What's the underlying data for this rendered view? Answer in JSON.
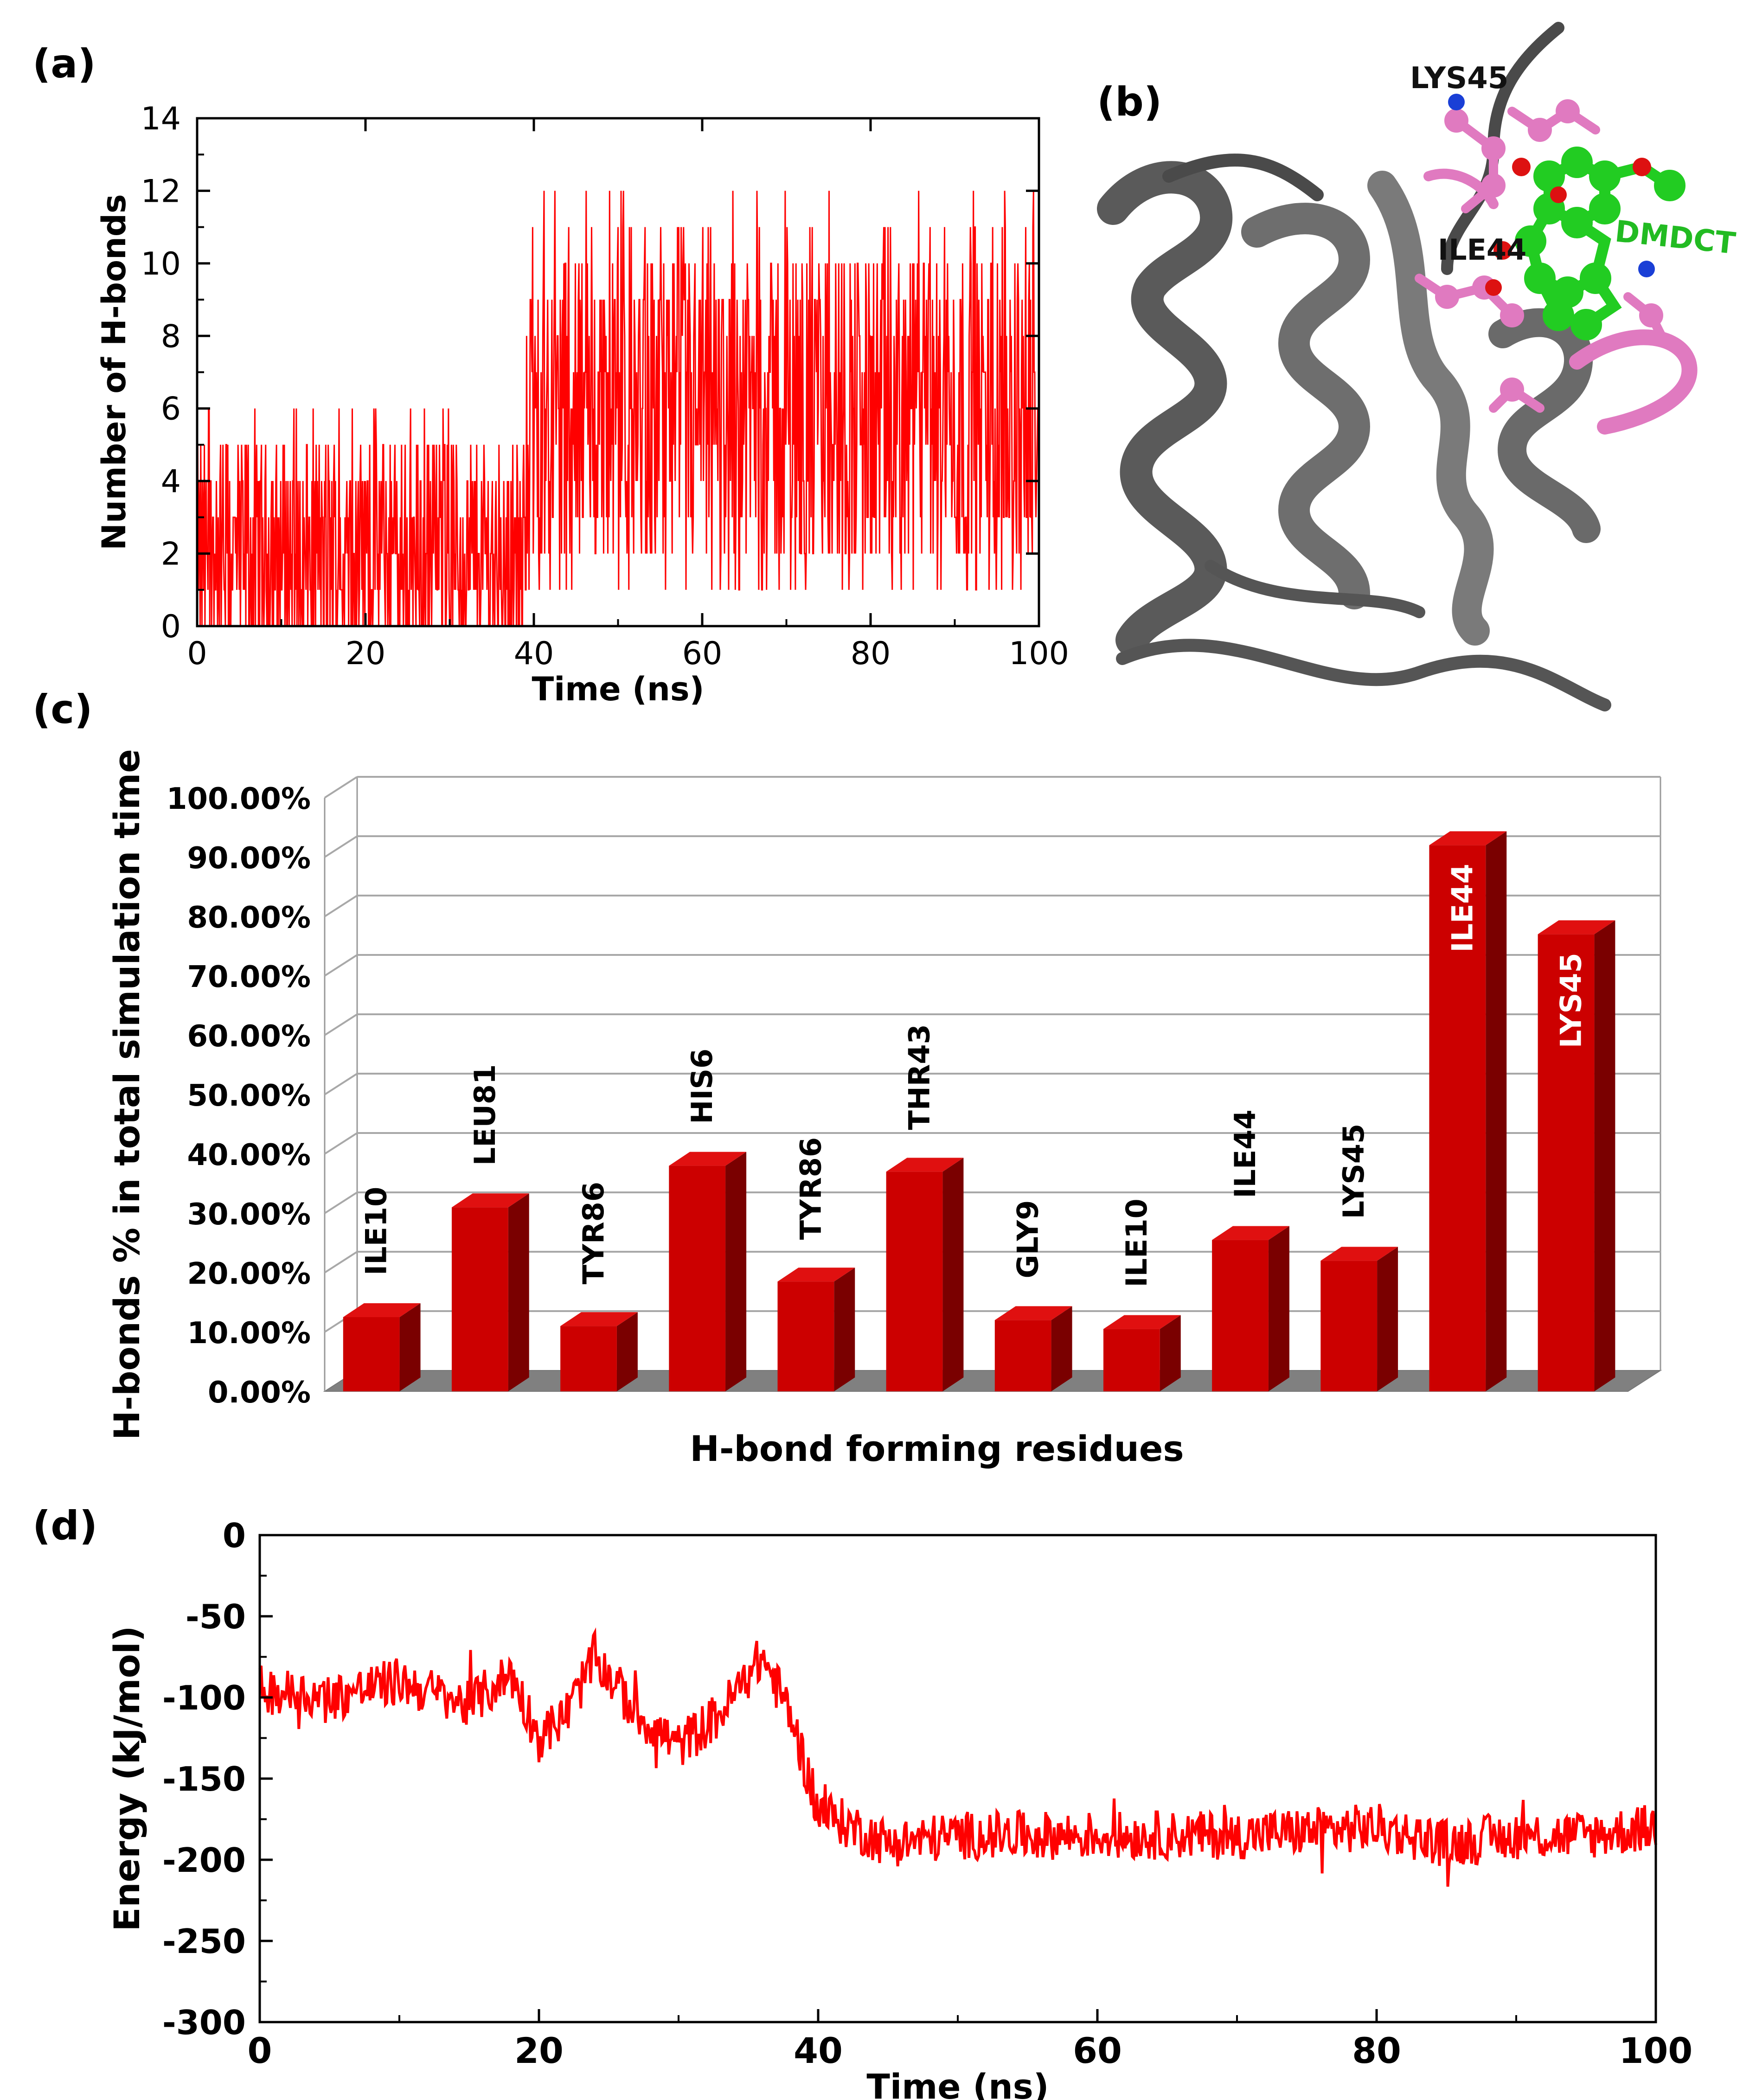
{
  "figure": {
    "panels": {
      "a": "(a)",
      "b": "(b)",
      "c": "(c)",
      "d": "(d)"
    }
  },
  "colors": {
    "line_red": "#ff0000",
    "bar_red": "#cc0000",
    "bar_side": "#8b0000",
    "ribbon": "#6e6e6e",
    "residue_pink": "#e07ac0",
    "ligand_green": "#22cc22",
    "nitrogen_blue": "#1a3fd6",
    "oxygen_red": "#dd1111"
  },
  "structure": {
    "labels": {
      "lys45": "LYS45",
      "ile44": "ILE44",
      "ligand": "DMDCT"
    }
  },
  "chart_data": [
    {
      "id": "a",
      "type": "line",
      "xlabel": "Time (ns)",
      "ylabel": "Number of H-bonds",
      "xlim": [
        0,
        100
      ],
      "ylim": [
        0,
        14
      ],
      "xticks": [
        0,
        20,
        40,
        60,
        80,
        100
      ],
      "yticks": [
        0,
        2,
        4,
        6,
        8,
        10,
        12,
        14
      ],
      "grid": false,
      "series": [
        {
          "color": "#ff0000",
          "x_range": [
            0,
            100
          ],
          "segments": [
            {
              "x": [
                0,
                20
              ],
              "mean": 1.9,
              "min": 0,
              "max": 6
            },
            {
              "x": [
                20,
                39
              ],
              "mean": 1.9,
              "min": 0,
              "max": 6
            },
            {
              "x": [
                39,
                100
              ],
              "mean": 5.8,
              "min": 1,
              "max": 12
            }
          ]
        }
      ]
    },
    {
      "id": "c",
      "type": "bar",
      "xlabel": "H-bond forming residues",
      "ylabel": "H-bonds % in total simulation time",
      "ylim": [
        0,
        100
      ],
      "yticks": [
        "0.00%",
        "10.00%",
        "20.00%",
        "30.00%",
        "40.00%",
        "50.00%",
        "60.00%",
        "70.00%",
        "80.00%",
        "90.00%",
        "100.00%"
      ],
      "grid": true,
      "categories": [
        "ILE10",
        "LEU81",
        "TYR86",
        "HIS6",
        "TYR86",
        "THR43",
        "GLY9",
        "ILE10",
        "ILE44",
        "LYS45",
        "ILE44",
        "LYS45"
      ],
      "values": [
        12.5,
        31,
        11,
        38,
        18.5,
        37,
        12,
        10.5,
        25.5,
        22,
        92,
        77
      ],
      "color": "#cc0000"
    },
    {
      "id": "d",
      "type": "line",
      "xlabel": "Time (ns)",
      "ylabel": "Energy (kJ/mol)",
      "xlim": [
        0,
        100
      ],
      "ylim": [
        -300,
        0
      ],
      "xticks": [
        0,
        20,
        40,
        60,
        80,
        100
      ],
      "yticks": [
        0,
        -50,
        -100,
        -150,
        -200,
        -250,
        -300
      ],
      "grid": false,
      "series": [
        {
          "color": "#ff0000",
          "x_range": [
            0,
            100
          ],
          "trend_x": [
            0,
            5,
            10,
            15,
            18,
            20,
            22,
            24,
            27,
            30,
            33,
            36,
            38,
            40,
            45,
            50,
            60,
            70,
            80,
            85,
            90,
            95,
            100
          ],
          "trend_y": [
            -95,
            -100,
            -90,
            -105,
            -85,
            -125,
            -110,
            -75,
            -110,
            -130,
            -110,
            -75,
            -110,
            -170,
            -190,
            -185,
            -185,
            -185,
            -180,
            -190,
            -185,
            -185,
            -180
          ],
          "noise_amplitude": 15
        }
      ]
    }
  ]
}
